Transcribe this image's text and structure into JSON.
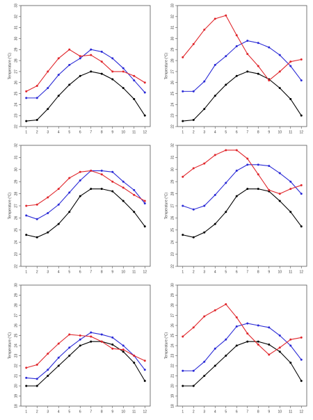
{
  "chart_data": [
    {
      "type": "line",
      "ylabel": "Temperature (°C)",
      "x": [
        1,
        2,
        3,
        4,
        5,
        6,
        7,
        8,
        9,
        10,
        11,
        12
      ],
      "xlim": [
        0.5,
        12.5
      ],
      "xticks": [
        1,
        2,
        3,
        4,
        5,
        6,
        7,
        8,
        9,
        10,
        11,
        12
      ],
      "ylim": [
        22,
        33
      ],
      "yticks": [
        22,
        23,
        24,
        25,
        26,
        27,
        28,
        29,
        30,
        31,
        32,
        33
      ],
      "series": [
        {
          "color": "#000000",
          "values": [
            22.5,
            22.6,
            23.6,
            24.8,
            25.8,
            26.6,
            27.0,
            26.8,
            26.3,
            25.5,
            24.5,
            23.0
          ]
        },
        {
          "color": "#2a2ad6",
          "values": [
            24.6,
            24.6,
            25.5,
            26.7,
            27.6,
            28.2,
            29.0,
            28.8,
            28.2,
            27.3,
            26.2,
            25.1
          ]
        },
        {
          "color": "#e0262b",
          "values": [
            25.2,
            25.7,
            27.0,
            28.2,
            29.0,
            28.4,
            28.5,
            27.9,
            27.0,
            27.0,
            26.6,
            26.0
          ]
        }
      ]
    },
    {
      "type": "line",
      "ylabel": "Temperature (°C)",
      "x": [
        1,
        2,
        3,
        4,
        5,
        6,
        7,
        8,
        9,
        10,
        11,
        12
      ],
      "xlim": [
        0.5,
        12.5
      ],
      "xticks": [
        1,
        2,
        3,
        4,
        5,
        6,
        7,
        8,
        9,
        10,
        11,
        12
      ],
      "ylim": [
        22,
        33
      ],
      "yticks": [
        22,
        23,
        24,
        25,
        26,
        27,
        28,
        29,
        30,
        31,
        32,
        33
      ],
      "series": [
        {
          "color": "#000000",
          "values": [
            22.5,
            22.6,
            23.6,
            24.8,
            25.8,
            26.6,
            27.0,
            26.8,
            26.3,
            25.5,
            24.5,
            23.0
          ]
        },
        {
          "color": "#2a2ad6",
          "values": [
            25.2,
            25.2,
            26.1,
            27.6,
            28.4,
            29.3,
            29.8,
            29.6,
            29.2,
            28.5,
            27.5,
            26.2
          ]
        },
        {
          "color": "#e0262b",
          "values": [
            28.3,
            29.5,
            30.8,
            31.8,
            32.1,
            30.3,
            28.6,
            27.5,
            26.2,
            27.0,
            27.9,
            28.1
          ]
        }
      ]
    },
    {
      "type": "line",
      "ylabel": "Temperature (°C)",
      "x": [
        1,
        2,
        3,
        4,
        5,
        6,
        7,
        8,
        9,
        10,
        11,
        12
      ],
      "xlim": [
        0.5,
        12.5
      ],
      "xticks": [
        1,
        2,
        3,
        4,
        5,
        6,
        7,
        8,
        9,
        10,
        11,
        12
      ],
      "ylim": [
        22,
        32
      ],
      "yticks": [
        22,
        23,
        24,
        25,
        26,
        27,
        28,
        29,
        30,
        31,
        32
      ],
      "series": [
        {
          "color": "#000000",
          "values": [
            24.6,
            24.4,
            24.8,
            25.5,
            26.5,
            27.8,
            28.4,
            28.4,
            28.2,
            27.4,
            26.5,
            25.3
          ]
        },
        {
          "color": "#2a2ad6",
          "values": [
            26.2,
            25.9,
            26.4,
            27.1,
            28.1,
            29.1,
            29.9,
            29.9,
            29.8,
            29.0,
            28.3,
            27.2
          ]
        },
        {
          "color": "#e0262b",
          "values": [
            27.0,
            27.1,
            27.7,
            28.4,
            29.3,
            29.8,
            29.9,
            29.6,
            29.0,
            28.5,
            27.9,
            27.4
          ]
        }
      ]
    },
    {
      "type": "line",
      "ylabel": "Temperature (°C)",
      "x": [
        1,
        2,
        3,
        4,
        5,
        6,
        7,
        8,
        9,
        10,
        11,
        12
      ],
      "xlim": [
        0.5,
        12.5
      ],
      "xticks": [
        1,
        2,
        3,
        4,
        5,
        6,
        7,
        8,
        9,
        10,
        11,
        12
      ],
      "ylim": [
        22,
        32
      ],
      "yticks": [
        22,
        23,
        24,
        25,
        26,
        27,
        28,
        29,
        30,
        31,
        32
      ],
      "series": [
        {
          "color": "#000000",
          "values": [
            24.6,
            24.4,
            24.8,
            25.5,
            26.5,
            27.8,
            28.4,
            28.4,
            28.2,
            27.4,
            26.5,
            25.3
          ]
        },
        {
          "color": "#2a2ad6",
          "values": [
            27.0,
            26.7,
            27.0,
            27.9,
            28.9,
            29.9,
            30.4,
            30.4,
            30.3,
            29.7,
            29.0,
            28.0
          ]
        },
        {
          "color": "#e0262b",
          "values": [
            29.4,
            30.1,
            30.5,
            31.2,
            31.6,
            31.6,
            30.9,
            29.6,
            28.3,
            28.0,
            28.4,
            28.7
          ]
        }
      ]
    },
    {
      "type": "line",
      "ylabel": "Temperature (°C)",
      "x": [
        1,
        2,
        3,
        4,
        5,
        6,
        7,
        8,
        9,
        10,
        11,
        12
      ],
      "xlim": [
        0.5,
        12.5
      ],
      "xticks": [
        1,
        2,
        3,
        4,
        5,
        6,
        7,
        8,
        9,
        10,
        11,
        12
      ],
      "ylim": [
        18,
        30
      ],
      "yticks": [
        18,
        19,
        20,
        21,
        22,
        23,
        24,
        25,
        26,
        27,
        28,
        29,
        30
      ],
      "series": [
        {
          "color": "#000000",
          "values": [
            20.0,
            20.0,
            21.0,
            22.0,
            23.0,
            24.0,
            24.4,
            24.4,
            24.1,
            23.4,
            22.3,
            20.5
          ]
        },
        {
          "color": "#2a2ad6",
          "values": [
            20.8,
            20.7,
            21.6,
            22.8,
            23.8,
            24.6,
            25.3,
            25.1,
            24.8,
            24.0,
            23.0,
            21.6
          ]
        },
        {
          "color": "#e0262b",
          "values": [
            21.8,
            22.1,
            23.2,
            24.2,
            25.1,
            25.0,
            24.9,
            24.4,
            23.7,
            23.6,
            23.0,
            22.5
          ]
        }
      ]
    },
    {
      "type": "line",
      "ylabel": "Temperature (°C)",
      "x": [
        1,
        2,
        3,
        4,
        5,
        6,
        7,
        8,
        9,
        10,
        11,
        12
      ],
      "xlim": [
        0.5,
        12.5
      ],
      "xticks": [
        1,
        2,
        3,
        4,
        5,
        6,
        7,
        8,
        9,
        10,
        11,
        12
      ],
      "ylim": [
        18,
        30
      ],
      "yticks": [
        18,
        19,
        20,
        21,
        22,
        23,
        24,
        25,
        26,
        27,
        28,
        29,
        30
      ],
      "series": [
        {
          "color": "#000000",
          "values": [
            20.0,
            20.0,
            21.0,
            22.0,
            23.0,
            24.0,
            24.4,
            24.4,
            24.1,
            23.4,
            22.3,
            20.5
          ]
        },
        {
          "color": "#2a2ad6",
          "values": [
            21.5,
            21.5,
            22.4,
            23.7,
            24.6,
            25.9,
            26.2,
            26.0,
            25.8,
            25.0,
            24.0,
            22.6
          ]
        },
        {
          "color": "#e0262b",
          "values": [
            24.9,
            25.8,
            26.9,
            27.5,
            28.1,
            26.8,
            25.2,
            24.1,
            23.1,
            23.8,
            24.6,
            24.8
          ]
        }
      ]
    }
  ]
}
